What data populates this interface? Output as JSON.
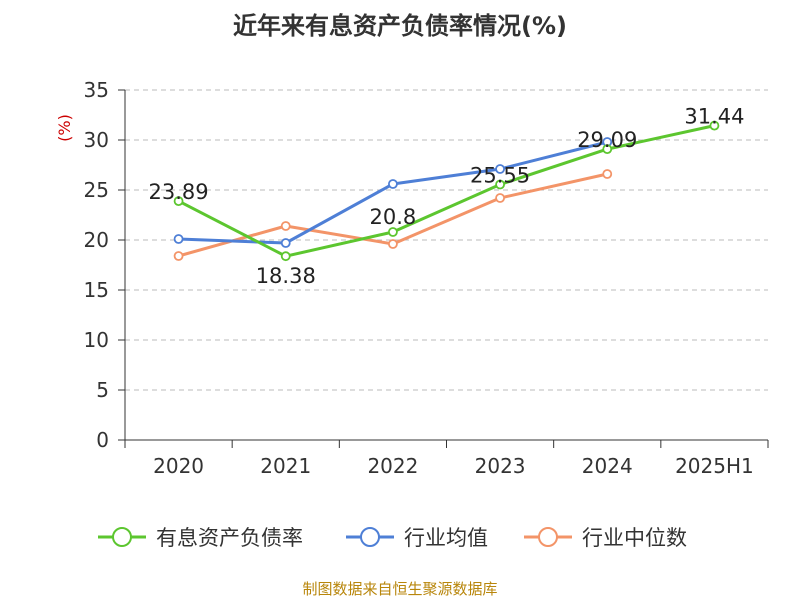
{
  "title": "近年来有息资产负债率情况(%)",
  "footer": "制图数据来自恒生聚源数据库",
  "colors": {
    "main": "#5cc62f",
    "avg": "#4e7fd6",
    "median": "#f39468",
    "axis": "#333333",
    "grid": "#bbbbbb",
    "yunit": "#cc0000"
  },
  "chart_data": {
    "type": "line",
    "title": "近年来有息资产负债率情况(%)",
    "ylabel": "(%)",
    "xlabel": "",
    "ylim": [
      0,
      35
    ],
    "yticks": [
      0,
      5,
      10,
      15,
      20,
      25,
      30,
      35
    ],
    "categories": [
      "2020",
      "2021",
      "2022",
      "2023",
      "2024",
      "2025H1"
    ],
    "grid": true,
    "legend_position": "bottom",
    "series": [
      {
        "name": "有息资产负债率",
        "values": [
          23.89,
          18.38,
          20.8,
          25.55,
          29.09,
          31.44
        ],
        "labels": [
          "23.89",
          "18.38",
          "20.8",
          "25.55",
          "29.09",
          "31.44"
        ],
        "color": "#5cc62f"
      },
      {
        "name": "行业均值",
        "values": [
          20.1,
          19.7,
          25.6,
          27.1,
          29.8,
          null
        ],
        "color": "#4e7fd6"
      },
      {
        "name": "行业中位数",
        "values": [
          18.4,
          21.4,
          19.6,
          24.2,
          26.6,
          null
        ],
        "color": "#f39468"
      }
    ]
  }
}
